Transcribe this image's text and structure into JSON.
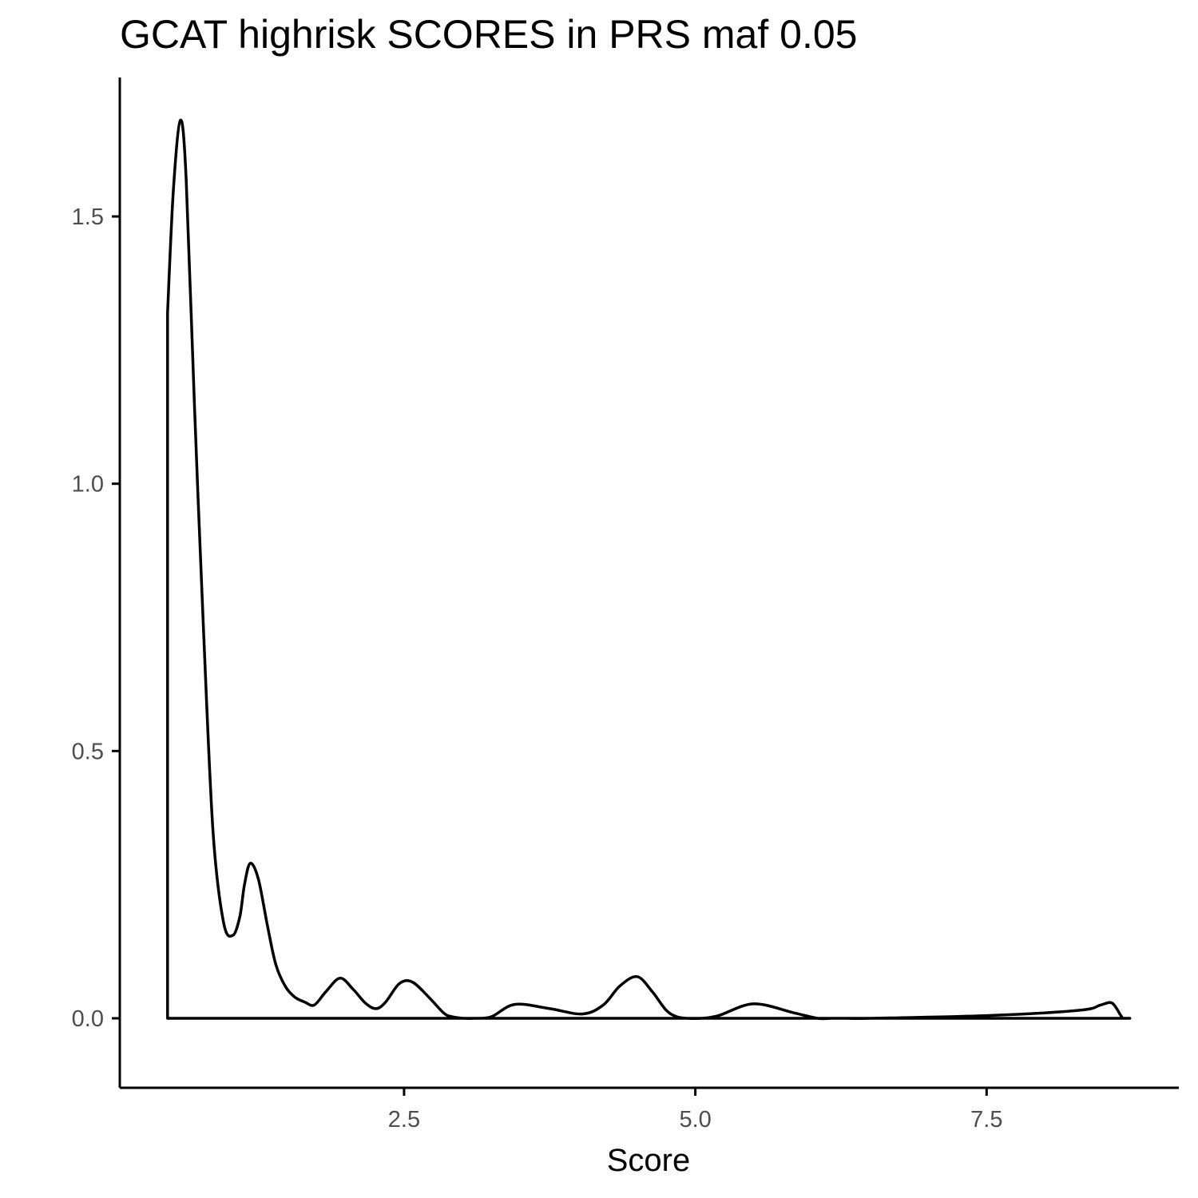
{
  "chart_data": {
    "type": "area",
    "title": "GCAT highrisk SCORES in PRS maf 0.05",
    "xlabel": "Score",
    "ylabel": "",
    "xlim": [
      0.06,
      9.15
    ],
    "ylim": [
      -0.13,
      1.76
    ],
    "x_ticks": [
      2.5,
      5.0,
      7.5
    ],
    "x_tick_labels": [
      "2.5",
      "5.0",
      "7.5"
    ],
    "y_ticks": [
      0.0,
      0.5,
      1.0,
      1.5
    ],
    "y_tick_labels": [
      "0.0",
      "0.5",
      "1.0",
      "1.5"
    ],
    "grid": false,
    "legend": "none",
    "colors": {
      "line": "#000000",
      "fill": "#ffffff",
      "axis": "#000000",
      "tick_text": "#4d4d4d"
    },
    "series": [
      {
        "x": [
          0.47,
          0.52,
          0.58,
          0.63,
          0.7,
          0.78,
          0.86,
          0.95,
          1.03,
          1.09,
          1.13,
          1.18,
          1.25,
          1.33,
          1.4,
          1.48,
          1.56,
          1.65,
          1.73,
          1.83,
          1.95,
          2.06,
          2.17,
          2.26,
          2.34,
          2.46,
          2.57,
          2.71,
          2.84,
          2.91,
          3.01,
          3.11,
          3.25,
          3.45,
          3.75,
          4.03,
          4.21,
          4.35,
          4.5,
          4.63,
          4.75,
          4.84,
          4.93,
          5.05,
          5.2,
          5.5,
          5.85,
          6.05,
          6.17,
          6.3,
          6.5,
          7.5,
          8.3,
          8.48,
          8.58,
          8.67,
          8.73,
          8.73,
          0.47,
          0.47
        ],
        "y": [
          1.32,
          1.55,
          1.68,
          1.57,
          1.15,
          0.72,
          0.35,
          0.18,
          0.155,
          0.19,
          0.25,
          0.29,
          0.26,
          0.17,
          0.1,
          0.06,
          0.04,
          0.03,
          0.025,
          0.05,
          0.075,
          0.055,
          0.028,
          0.018,
          0.03,
          0.065,
          0.068,
          0.04,
          0.01,
          0.003,
          0.0,
          0.0,
          0.003,
          0.026,
          0.018,
          0.008,
          0.025,
          0.06,
          0.078,
          0.05,
          0.015,
          0.003,
          0.0,
          0.0,
          0.005,
          0.027,
          0.01,
          0.0,
          0.0,
          0.0,
          0.0,
          0.005,
          0.015,
          0.025,
          0.028,
          0.0,
          0.0,
          0.0,
          0.0,
          1.32
        ]
      }
    ]
  }
}
